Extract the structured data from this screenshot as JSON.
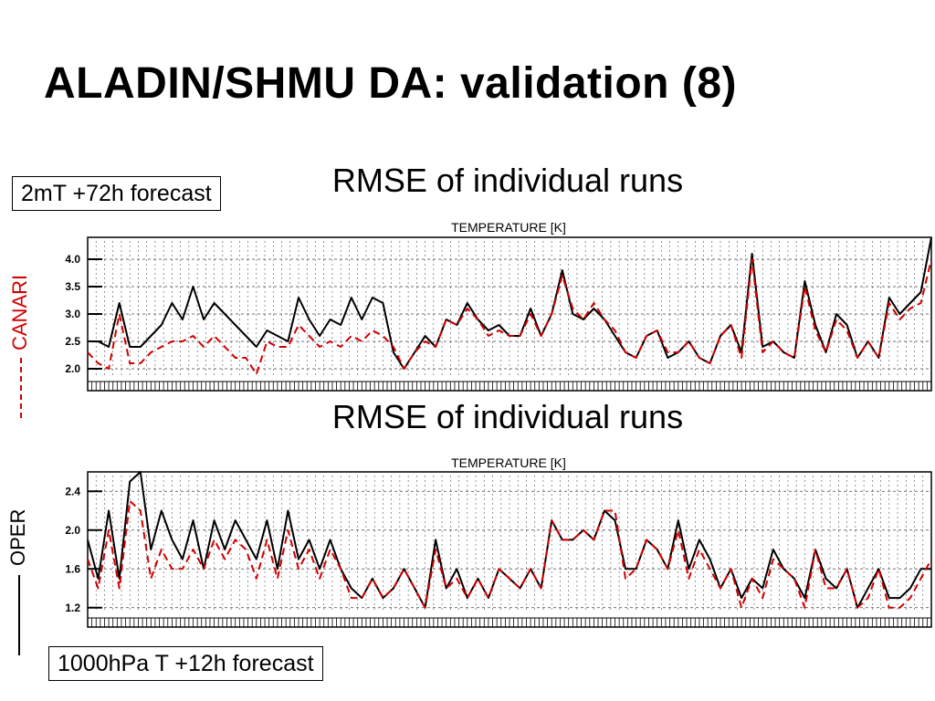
{
  "slide": {
    "title": "ALADIN/SHMU DA: validation (8)",
    "box_top": "2mT +72h forecast",
    "box_bottom": "1000hPa T +12h forecast"
  },
  "legend": {
    "canari_label": "CANARI",
    "canari_color": "#d00000",
    "oper_label": "OPER",
    "oper_color": "#000000"
  },
  "chart_data": [
    {
      "type": "line",
      "title": "RMSE of individual runs",
      "subtitle": "TEMPERATURE [K]",
      "ylim": [
        1.6,
        4.4
      ],
      "yticks": [
        2.0,
        2.5,
        3.0,
        3.5,
        4.0
      ],
      "ytick_labels": [
        "2.0",
        "2.5",
        "3.0",
        "3.5",
        "4.0"
      ],
      "grid": true,
      "x": [
        0,
        5,
        10,
        15,
        20,
        25,
        30,
        35,
        40,
        45,
        50,
        55,
        60,
        65,
        70,
        75,
        80,
        85,
        90,
        95,
        100,
        105,
        110,
        115,
        120,
        125,
        130,
        135,
        140,
        145,
        150,
        155,
        160,
        165,
        170,
        175,
        180,
        185,
        190,
        195,
        200,
        205,
        210,
        215,
        220,
        225,
        230,
        235,
        240,
        245,
        250,
        255,
        260,
        265,
        270,
        275,
        280,
        285,
        290,
        295,
        300,
        305,
        310,
        315,
        320,
        325,
        330,
        335,
        340,
        345,
        350,
        355,
        360,
        365,
        370,
        375,
        380,
        385,
        390,
        395,
        400
      ],
      "series": [
        {
          "values": [
            2.5,
            2.5,
            2.4,
            3.2,
            2.4,
            2.4,
            2.6,
            2.8,
            3.2,
            2.9,
            3.5,
            2.9,
            3.2,
            3.0,
            2.8,
            2.6,
            2.4,
            2.7,
            2.6,
            2.5,
            3.3,
            2.9,
            2.6,
            2.9,
            2.8,
            3.3,
            2.9,
            3.3,
            3.2,
            2.3,
            2.0,
            2.3,
            2.6,
            2.4,
            2.9,
            2.8,
            3.2,
            2.9,
            2.7,
            2.8,
            2.6,
            2.6,
            3.1,
            2.6,
            3.0,
            3.8,
            3.0,
            2.9,
            3.1,
            2.9,
            2.6,
            2.3,
            2.2,
            2.6,
            2.7,
            2.2,
            2.3,
            2.5,
            2.2,
            2.1,
            2.6,
            2.8,
            2.3,
            4.1,
            2.4,
            2.5,
            2.3,
            2.2,
            3.6,
            2.8,
            2.3,
            3.0,
            2.8,
            2.2,
            2.5,
            2.2,
            3.3,
            3.0,
            3.2,
            3.4,
            4.4
          ]
        },
        {
          "values": [
            2.3,
            2.1,
            2.0,
            3.0,
            2.1,
            2.1,
            2.3,
            2.4,
            2.5,
            2.5,
            2.6,
            2.4,
            2.6,
            2.4,
            2.2,
            2.2,
            1.9,
            2.5,
            2.4,
            2.4,
            2.8,
            2.6,
            2.4,
            2.5,
            2.4,
            2.6,
            2.5,
            2.7,
            2.6,
            2.4,
            2.0,
            2.3,
            2.5,
            2.4,
            2.9,
            2.8,
            3.1,
            2.9,
            2.6,
            2.7,
            2.6,
            2.6,
            3.0,
            2.6,
            3.0,
            3.7,
            3.1,
            2.9,
            3.2,
            2.9,
            2.7,
            2.3,
            2.2,
            2.6,
            2.7,
            2.3,
            2.3,
            2.5,
            2.2,
            2.1,
            2.6,
            2.8,
            2.2,
            4.0,
            2.3,
            2.5,
            2.3,
            2.2,
            3.5,
            2.7,
            2.3,
            2.9,
            2.7,
            2.2,
            2.5,
            2.2,
            3.2,
            2.9,
            3.1,
            3.2,
            4.0
          ]
        }
      ]
    },
    {
      "type": "line",
      "title": "RMSE of individual runs",
      "subtitle": "TEMPERATURE [K]",
      "ylim": [
        1.0,
        2.6
      ],
      "yticks": [
        1.2,
        1.6,
        2.0,
        2.4
      ],
      "ytick_labels": [
        "1.2",
        "1.6",
        "2.0",
        "2.4"
      ],
      "grid": true,
      "x": [
        0,
        5,
        10,
        15,
        20,
        25,
        30,
        35,
        40,
        45,
        50,
        55,
        60,
        65,
        70,
        75,
        80,
        85,
        90,
        95,
        100,
        105,
        110,
        115,
        120,
        125,
        130,
        135,
        140,
        145,
        150,
        155,
        160,
        165,
        170,
        175,
        180,
        185,
        190,
        195,
        200,
        205,
        210,
        215,
        220,
        225,
        230,
        235,
        240,
        245,
        250,
        255,
        260,
        265,
        270,
        275,
        280,
        285,
        290,
        295,
        300,
        305,
        310,
        315,
        320,
        325,
        330,
        335,
        340,
        345,
        350,
        355,
        360,
        365,
        370,
        375,
        380,
        385,
        390,
        395,
        400
      ],
      "series": [
        {
          "values": [
            1.9,
            1.5,
            2.2,
            1.5,
            2.5,
            2.6,
            1.8,
            2.2,
            1.9,
            1.7,
            2.1,
            1.6,
            2.1,
            1.8,
            2.1,
            1.9,
            1.7,
            2.1,
            1.6,
            2.2,
            1.7,
            1.9,
            1.6,
            1.9,
            1.6,
            1.4,
            1.3,
            1.5,
            1.3,
            1.4,
            1.6,
            1.4,
            1.2,
            1.9,
            1.4,
            1.6,
            1.3,
            1.5,
            1.3,
            1.6,
            1.5,
            1.4,
            1.6,
            1.4,
            2.1,
            1.9,
            1.9,
            2.0,
            1.9,
            2.2,
            2.1,
            1.6,
            1.6,
            1.9,
            1.8,
            1.6,
            2.1,
            1.6,
            1.9,
            1.7,
            1.4,
            1.6,
            1.3,
            1.5,
            1.4,
            1.8,
            1.6,
            1.5,
            1.3,
            1.8,
            1.5,
            1.4,
            1.6,
            1.2,
            1.4,
            1.6,
            1.3,
            1.3,
            1.4,
            1.6,
            1.6
          ]
        },
        {
          "values": [
            1.7,
            1.4,
            2.0,
            1.4,
            2.3,
            2.2,
            1.5,
            1.8,
            1.6,
            1.6,
            1.8,
            1.6,
            1.9,
            1.7,
            1.9,
            1.8,
            1.5,
            1.9,
            1.5,
            2.0,
            1.6,
            1.8,
            1.5,
            1.8,
            1.6,
            1.3,
            1.3,
            1.5,
            1.3,
            1.4,
            1.6,
            1.4,
            1.2,
            1.8,
            1.4,
            1.5,
            1.3,
            1.5,
            1.3,
            1.6,
            1.5,
            1.4,
            1.6,
            1.4,
            2.1,
            1.9,
            1.9,
            2.0,
            1.9,
            2.2,
            2.2,
            1.5,
            1.6,
            1.9,
            1.8,
            1.6,
            2.0,
            1.5,
            1.8,
            1.6,
            1.4,
            1.6,
            1.2,
            1.5,
            1.3,
            1.7,
            1.6,
            1.5,
            1.2,
            1.8,
            1.4,
            1.4,
            1.6,
            1.2,
            1.3,
            1.6,
            1.2,
            1.2,
            1.3,
            1.5,
            1.7
          ]
        }
      ]
    }
  ]
}
